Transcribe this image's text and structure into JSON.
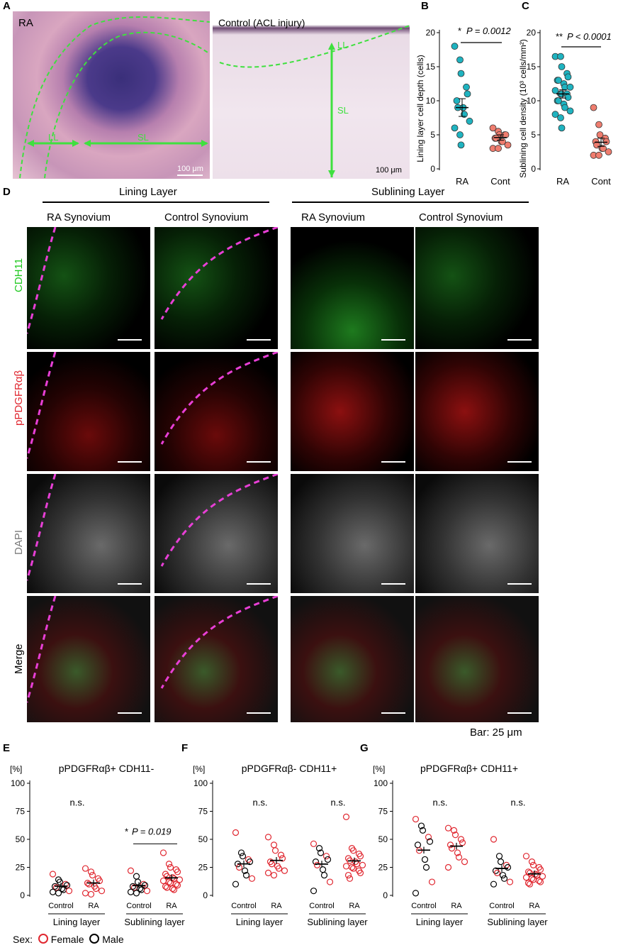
{
  "panels": {
    "A": "A",
    "B": "B",
    "C": "C",
    "D": "D",
    "E": "E",
    "F": "F",
    "G": "G"
  },
  "panel_a": {
    "left_label": "RA",
    "right_label": "Control (ACL injury)",
    "ll_label": "LL",
    "sl_label": "SL",
    "scale_left": "100 μm",
    "scale_right": "100 μm"
  },
  "panel_b": {
    "ylabel": "Lining layer cell depth (cells)",
    "stat_star": "*",
    "stat_text": "P = 0.0012",
    "xticks": [
      "RA",
      "Cont"
    ],
    "yticks": [
      "0",
      "5",
      "10",
      "15",
      "20"
    ]
  },
  "panel_c": {
    "ylabel": "Sublining cell density (10³ cells/mm²)",
    "stat_star": "**",
    "stat_text": "P < 0.0001",
    "xticks": [
      "RA",
      "Cont"
    ],
    "yticks": [
      "0",
      "5",
      "10",
      "15",
      "20"
    ]
  },
  "panel_d": {
    "group_left": "Lining Layer",
    "group_right": "Sublining Layer",
    "columns": [
      "RA Synovium",
      "Control Synovium",
      "RA Synovium",
      "Control Synovium"
    ],
    "rows": [
      "CDH11",
      "pPDGFRαβ",
      "DAPI",
      "Merge"
    ],
    "bar_note": "Bar: 25 μm"
  },
  "small_charts": {
    "y_unit": "[%]",
    "yticks": [
      "0",
      "25",
      "50",
      "75",
      "100"
    ],
    "xticks": [
      "Control",
      "RA"
    ],
    "groups": [
      "Lining layer",
      "Sublining layer"
    ]
  },
  "panel_e": {
    "title": "pPDGFRαβ+ CDH11-",
    "ns1": "n.s.",
    "stat_star": "*",
    "stat_text": "P = 0.019"
  },
  "panel_f": {
    "title": "pPDGFRαβ- CDH11+",
    "ns1": "n.s.",
    "ns2": "n.s."
  },
  "panel_g": {
    "title": "pPDGFRαβ+ CDH11+",
    "ns1": "n.s.",
    "ns2": "n.s."
  },
  "legend": {
    "prefix": "Sex:",
    "female": "Female",
    "male": "Male"
  },
  "colors": {
    "ra_teal": "#1fb3c0",
    "cont_salmon": "#ef7d6f",
    "female_red": "#e0262f",
    "male_black": "#000000",
    "green_line": "#3fe03f",
    "magenta_dash": "#e83fd6"
  },
  "chart_data": [
    {
      "type": "scatter",
      "panel": "B",
      "ylabel": "Lining layer cell depth (cells)",
      "ylim": [
        0,
        20
      ],
      "categories": [
        "RA",
        "Cont"
      ],
      "series": [
        {
          "name": "RA",
          "values": [
            18,
            16,
            14,
            12,
            11,
            10,
            9,
            9,
            8,
            7,
            6,
            5,
            3.5
          ]
        },
        {
          "name": "Cont",
          "values": [
            6,
            5.5,
            5,
            5,
            5,
            4.5,
            4.5,
            4,
            4,
            3.5,
            3,
            3
          ]
        }
      ],
      "mean_sem": {
        "RA": [
          9,
          1.3
        ],
        "Cont": [
          4.6,
          0.4
        ]
      }
    },
    {
      "type": "scatter",
      "panel": "C",
      "ylabel": "Sublining cell density (10³ cells/mm²)",
      "ylim": [
        0,
        20
      ],
      "categories": [
        "RA",
        "Cont"
      ],
      "series": [
        {
          "name": "RA",
          "values": [
            16.5,
            16.5,
            15,
            14,
            13.5,
            13,
            13,
            12.5,
            12,
            12,
            11.5,
            11,
            11,
            11,
            10.5,
            10,
            10,
            9.5,
            9,
            8.5,
            8,
            7.5,
            6
          ]
        },
        {
          "name": "Cont",
          "values": [
            9,
            6.5,
            5,
            4.5,
            4,
            4,
            3.5,
            3,
            3,
            2.5,
            2,
            2
          ]
        }
      ],
      "mean_sem": {
        "RA": [
          11,
          0.6
        ],
        "Cont": [
          3.9,
          0.6
        ]
      }
    },
    {
      "type": "scatter",
      "panel": "E",
      "title": "pPDGFRαβ+ CDH11-",
      "ylim": [
        0,
        100
      ],
      "groups": [
        {
          "name": "Lining layer",
          "Control": [
            19,
            14,
            12,
            10,
            9,
            8,
            7,
            6,
            5,
            4,
            3,
            2
          ],
          "RA": [
            24,
            21,
            18,
            15,
            13,
            11,
            10,
            8,
            6,
            4,
            2,
            1
          ]
        },
        {
          "name": "Sublining layer",
          "Control": [
            22,
            17,
            12,
            10,
            9,
            8,
            7,
            6,
            5,
            4,
            3,
            2
          ],
          "RA": [
            38,
            28,
            25,
            23,
            21,
            19,
            17,
            16,
            15,
            14,
            13,
            12,
            11,
            10,
            9,
            8,
            7,
            6,
            5
          ]
        }
      ]
    },
    {
      "type": "scatter",
      "panel": "F",
      "title": "pPDGFRαβ- CDH11+",
      "ylim": [
        0,
        100
      ],
      "groups": [
        {
          "name": "Lining layer",
          "Control": [
            56,
            38,
            35,
            32,
            30,
            28,
            25,
            22,
            18,
            15,
            10
          ],
          "RA": [
            52,
            45,
            40,
            36,
            33,
            30,
            28,
            26,
            24,
            22,
            20,
            18
          ]
        },
        {
          "name": "Sublining layer",
          "Control": [
            46,
            42,
            38,
            35,
            32,
            30,
            27,
            23,
            18,
            12,
            4
          ],
          "RA": [
            70,
            42,
            40,
            37,
            35,
            33,
            31,
            30,
            28,
            27,
            26,
            25,
            24,
            22,
            20,
            18,
            15
          ]
        }
      ]
    },
    {
      "type": "scatter",
      "panel": "G",
      "title": "pPDGFRαβ+ CDH11+",
      "ylim": [
        0,
        100
      ],
      "groups": [
        {
          "name": "Lining layer",
          "Control": [
            68,
            62,
            58,
            52,
            48,
            45,
            40,
            32,
            25,
            12,
            2
          ],
          "RA": [
            60,
            58,
            54,
            50,
            47,
            45,
            42,
            38,
            34,
            30,
            25
          ]
        },
        {
          "name": "Sublining layer",
          "Control": [
            50,
            35,
            30,
            27,
            25,
            22,
            20,
            18,
            15,
            12,
            10
          ],
          "RA": [
            35,
            30,
            27,
            25,
            23,
            21,
            20,
            19,
            18,
            17,
            16,
            15,
            14,
            13,
            12,
            11,
            10
          ]
        }
      ]
    }
  ]
}
